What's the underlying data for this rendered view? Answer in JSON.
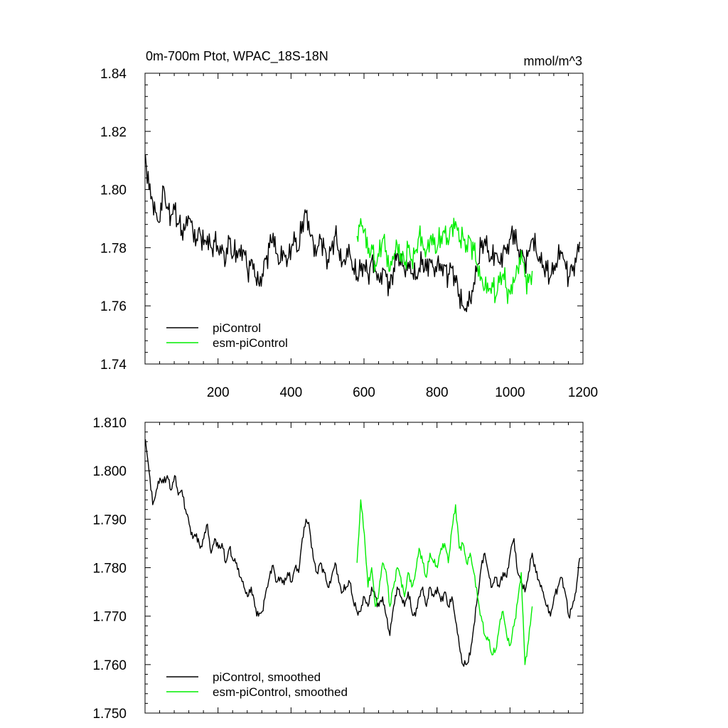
{
  "colors": {
    "piControl": "#000000",
    "esm_piControl": "#00ee00",
    "axis": "#000000",
    "background": "#ffffff"
  },
  "chart_data": [
    {
      "type": "line",
      "title": "0m-700m Ptot, WPAC_18S-18N",
      "units": "mmol/m^3",
      "xlabel": "",
      "ylabel": "",
      "xlim": [
        0,
        1200
      ],
      "ylim": [
        1.74,
        1.84
      ],
      "xtick_labels": [
        "200",
        "400",
        "600",
        "800",
        "1000",
        "1200"
      ],
      "ytick_labels": [
        "1.74",
        "1.76",
        "1.78",
        "1.80",
        "1.82",
        "1.84"
      ],
      "legend_position": "bottom-left",
      "series": [
        {
          "name": "piControl",
          "x_start": 1,
          "x_step": 10,
          "values": [
            1.812,
            1.8,
            1.796,
            1.792,
            1.789,
            1.801,
            1.794,
            1.791,
            1.793,
            1.788,
            1.786,
            1.787,
            1.79,
            1.786,
            1.783,
            1.785,
            1.781,
            1.784,
            1.78,
            1.782,
            1.779,
            1.781,
            1.775,
            1.783,
            1.777,
            1.779,
            1.777,
            1.779,
            1.772,
            1.776,
            1.77,
            1.768,
            1.771,
            1.776,
            1.78,
            1.785,
            1.778,
            1.775,
            1.778,
            1.776,
            1.78,
            1.782,
            1.779,
            1.789,
            1.792,
            1.785,
            1.782,
            1.779,
            1.783,
            1.78,
            1.776,
            1.78,
            1.784,
            1.779,
            1.775,
            1.776,
            1.778,
            1.773,
            1.77,
            1.772,
            1.774,
            1.771,
            1.776,
            1.772,
            1.769,
            1.773,
            1.77,
            1.766,
            1.773,
            1.778,
            1.774,
            1.772,
            1.775,
            1.771,
            1.769,
            1.773,
            1.776,
            1.772,
            1.776,
            1.773,
            1.775,
            1.772,
            1.774,
            1.771,
            1.773,
            1.768,
            1.764,
            1.76,
            1.758,
            1.762,
            1.768,
            1.774,
            1.78,
            1.783,
            1.779,
            1.776,
            1.778,
            1.775,
            1.779,
            1.778,
            1.783,
            1.786,
            1.779,
            1.777,
            1.775,
            1.779,
            1.783,
            1.779,
            1.777,
            1.774,
            1.772,
            1.77,
            1.774,
            1.776,
            1.778,
            1.775,
            1.77,
            1.772,
            1.775,
            1.782
          ]
        },
        {
          "name": "esm-piControl",
          "x_start": 581,
          "x_step": 10,
          "values": [
            1.784,
            1.79,
            1.786,
            1.778,
            1.781,
            1.774,
            1.777,
            1.783,
            1.779,
            1.772,
            1.776,
            1.781,
            1.778,
            1.774,
            1.78,
            1.776,
            1.779,
            1.784,
            1.781,
            1.779,
            1.783,
            1.781,
            1.78,
            1.784,
            1.785,
            1.781,
            1.788,
            1.789,
            1.782,
            1.784,
            1.781,
            1.783,
            1.779,
            1.774,
            1.77,
            1.766,
            1.765,
            1.768,
            1.763,
            1.768,
            1.771,
            1.766,
            1.764,
            1.768,
            1.773,
            1.779,
            1.77,
            1.768,
            1.772
          ]
        }
      ],
      "legend": [
        "piControl",
        "esm-piControl"
      ]
    },
    {
      "type": "line",
      "title": "",
      "xlabel": "",
      "ylabel": "",
      "xlim": [
        0,
        1200
      ],
      "ylim": [
        1.75,
        1.81
      ],
      "ytick_labels": [
        "1.750",
        "1.760",
        "1.770",
        "1.780",
        "1.790",
        "1.800",
        "1.810"
      ],
      "legend_position": "bottom-left",
      "series": [
        {
          "name": "piControl, smoothed",
          "x_start": 1,
          "x_step": 10,
          "values": [
            1.8065,
            1.8,
            1.793,
            1.796,
            1.7985,
            1.7975,
            1.799,
            1.796,
            1.799,
            1.795,
            1.796,
            1.792,
            1.789,
            1.786,
            1.787,
            1.784,
            1.786,
            1.789,
            1.783,
            1.786,
            1.784,
            1.785,
            1.781,
            1.784,
            1.7815,
            1.781,
            1.778,
            1.776,
            1.774,
            1.776,
            1.772,
            1.77,
            1.771,
            1.775,
            1.778,
            1.7805,
            1.777,
            1.778,
            1.7765,
            1.779,
            1.777,
            1.78,
            1.779,
            1.786,
            1.79,
            1.788,
            1.782,
            1.779,
            1.781,
            1.779,
            1.776,
            1.778,
            1.781,
            1.777,
            1.775,
            1.776,
            1.777,
            1.773,
            1.771,
            1.771,
            1.774,
            1.772,
            1.776,
            1.774,
            1.772,
            1.774,
            1.77,
            1.766,
            1.772,
            1.776,
            1.774,
            1.772,
            1.775,
            1.771,
            1.77,
            1.774,
            1.776,
            1.772,
            1.776,
            1.774,
            1.776,
            1.773,
            1.775,
            1.772,
            1.774,
            1.769,
            1.764,
            1.76,
            1.76,
            1.762,
            1.768,
            1.774,
            1.78,
            1.783,
            1.779,
            1.776,
            1.778,
            1.776,
            1.779,
            1.778,
            1.783,
            1.786,
            1.779,
            1.777,
            1.775,
            1.779,
            1.783,
            1.779,
            1.777,
            1.775,
            1.772,
            1.77,
            1.774,
            1.776,
            1.778,
            1.775,
            1.77,
            1.772,
            1.775,
            1.782
          ]
        },
        {
          "name": "esm-piControl, smoothed",
          "x_start": 581,
          "x_step": 10,
          "values": [
            1.781,
            1.794,
            1.787,
            1.776,
            1.78,
            1.772,
            1.775,
            1.781,
            1.779,
            1.772,
            1.776,
            1.78,
            1.778,
            1.774,
            1.779,
            1.776,
            1.779,
            1.784,
            1.781,
            1.778,
            1.783,
            1.781,
            1.78,
            1.784,
            1.785,
            1.781,
            1.788,
            1.793,
            1.784,
            1.785,
            1.781,
            1.783,
            1.779,
            1.774,
            1.77,
            1.766,
            1.765,
            1.762,
            1.763,
            1.768,
            1.771,
            1.766,
            1.764,
            1.768,
            1.773,
            1.779,
            1.76,
            1.765,
            1.772
          ]
        }
      ],
      "legend": [
        "piControl, smoothed",
        "esm-piControl, smoothed"
      ]
    }
  ]
}
